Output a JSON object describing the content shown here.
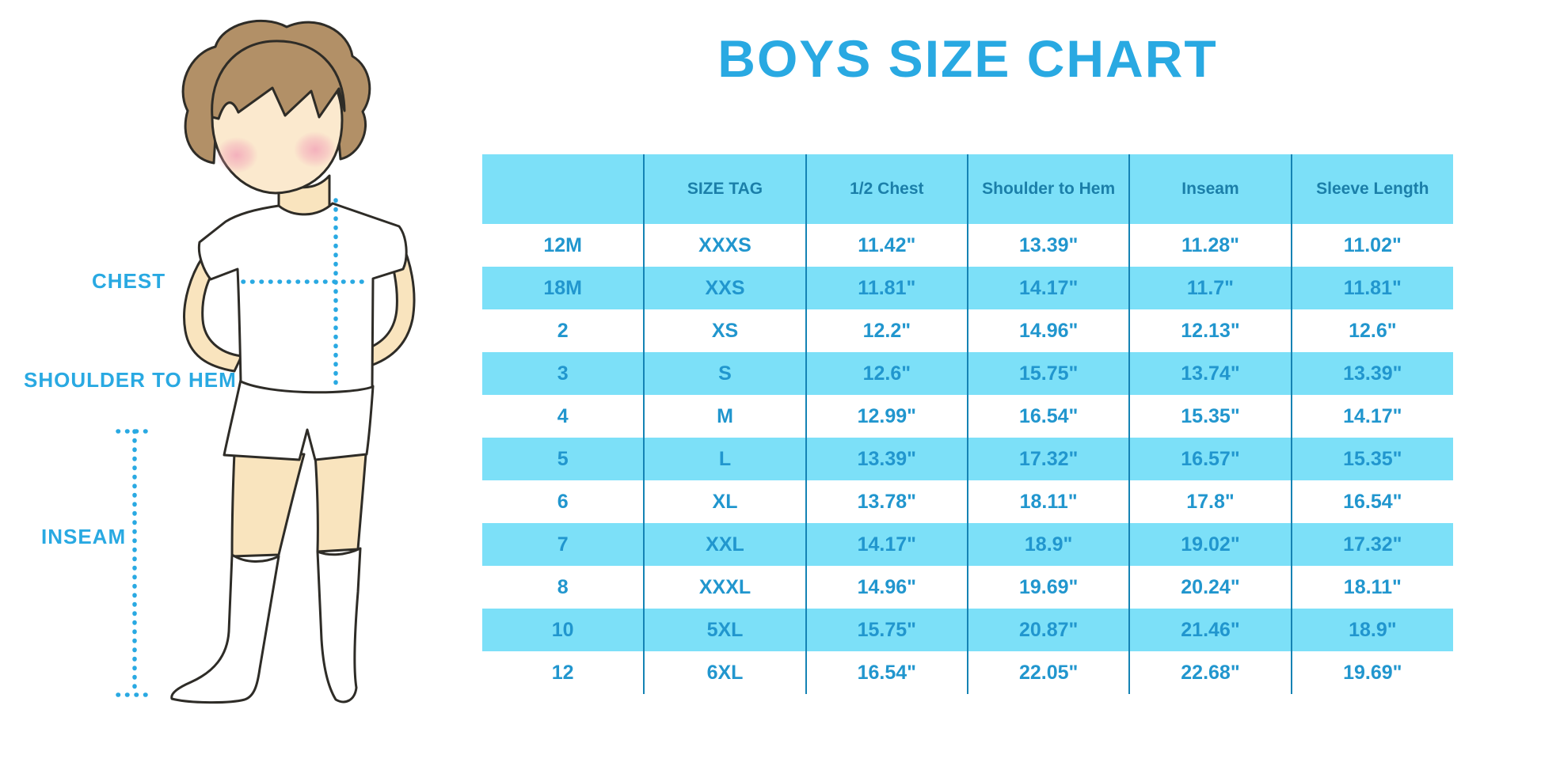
{
  "title": "BOYS SIZE CHART",
  "diagram": {
    "labels": {
      "chest": "CHEST",
      "shoulder_to_hem": "SHOULDER TO HEM",
      "inseam": "INSEAM"
    }
  },
  "colors": {
    "accent_blue": "#29A9E2",
    "cyan_fill": "#7CE0F8",
    "divider_blue": "#1583B4",
    "header_text": "#1B7FA9",
    "cell_text": "#2196CE",
    "skin": "#F9E4BE",
    "hair": "#B29067",
    "blush": "#F2A3B8"
  },
  "chart_data": {
    "type": "table",
    "title": "BOYS SIZE CHART",
    "columns": [
      "",
      "SIZE TAG",
      "1/2 Chest",
      "Shoulder to Hem",
      "Inseam",
      "Sleeve Length"
    ],
    "rows": [
      [
        "12M",
        "XXXS",
        "11.42\"",
        "13.39\"",
        "11.28\"",
        "11.02\""
      ],
      [
        "18M",
        "XXS",
        "11.81\"",
        "14.17\"",
        "11.7\"",
        "11.81\""
      ],
      [
        "2",
        "XS",
        "12.2\"",
        "14.96\"",
        "12.13\"",
        "12.6\""
      ],
      [
        "3",
        "S",
        "12.6\"",
        "15.75\"",
        "13.74\"",
        "13.39\""
      ],
      [
        "4",
        "M",
        "12.99\"",
        "16.54\"",
        "15.35\"",
        "14.17\""
      ],
      [
        "5",
        "L",
        "13.39\"",
        "17.32\"",
        "16.57\"",
        "15.35\""
      ],
      [
        "6",
        "XL",
        "13.78\"",
        "18.11\"",
        "17.8\"",
        "16.54\""
      ],
      [
        "7",
        "XXL",
        "14.17\"",
        "18.9\"",
        "19.02\"",
        "17.32\""
      ],
      [
        "8",
        "XXXL",
        "14.96\"",
        "19.69\"",
        "20.24\"",
        "18.11\""
      ],
      [
        "10",
        "5XL",
        "15.75\"",
        "20.87\"",
        "21.46\"",
        "18.9\""
      ],
      [
        "12",
        "6XL",
        "16.54\"",
        "22.05\"",
        "22.68\"",
        "19.69\""
      ]
    ],
    "stripe_rows": [
      1,
      3,
      5,
      7,
      9
    ],
    "legend_position": "none",
    "grid": "vertical-dividers-only"
  }
}
